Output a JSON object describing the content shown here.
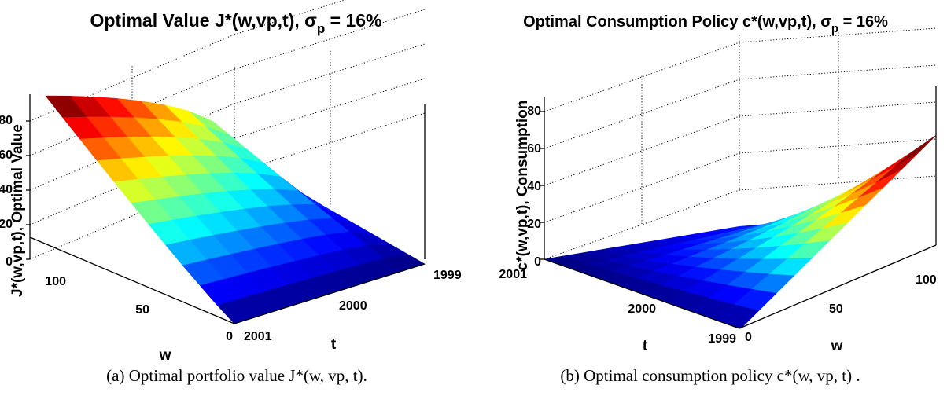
{
  "colors": {
    "axis": "#000000",
    "grid": "#000000",
    "background": "#ffffff",
    "colormap": "jet"
  },
  "chart_data": [
    {
      "type": "surface",
      "title": "Optimal Value J*(w,vp,t), σ",
      "title_sub": "p",
      "title_tail": " = 16%",
      "xlabel": "t",
      "ylabel": "w",
      "zlabel": "J*(w,vp,t), Optimal Value",
      "t_ticks": [
        "1999",
        "2000",
        "2001"
      ],
      "w_ticks": [
        "0",
        "50",
        "100"
      ],
      "z_ticks": [
        "0",
        "20",
        "40",
        "60",
        "80"
      ],
      "t_range": [
        1999,
        2001
      ],
      "w_range": [
        0,
        110
      ],
      "z_range": [
        0,
        85
      ],
      "w_samples": [
        0,
        10,
        20,
        30,
        40,
        50,
        60,
        70,
        80,
        90,
        100,
        110
      ],
      "t_samples": [
        1999.0,
        1999.25,
        1999.5,
        1999.75,
        2000.0,
        2000.25,
        2000.5,
        2000.75,
        2001.0
      ],
      "grid": true,
      "caption": "(a) Optimal portfolio value J*(w, vp, t)."
    },
    {
      "type": "surface",
      "title": "Optimal Consumption Policy c*(w,vp,t), σ",
      "title_sub": "p",
      "title_tail": " = 16%",
      "xlabel": "t",
      "ylabel": "w",
      "zlabel": "c*(w,vp,t), Consumption",
      "t_ticks": [
        "1999",
        "2000",
        "2001"
      ],
      "w_ticks": [
        "0",
        "50",
        "100"
      ],
      "z_ticks": [
        "0",
        "20",
        "40",
        "60",
        "80"
      ],
      "t_range": [
        1999,
        2001
      ],
      "w_range": [
        0,
        110
      ],
      "z_range": [
        0,
        85
      ],
      "w_samples": [
        0,
        10,
        20,
        30,
        40,
        50,
        60,
        70,
        80,
        90,
        100,
        110
      ],
      "t_samples": [
        1999.0,
        1999.25,
        1999.5,
        1999.75,
        2000.0,
        2000.25,
        2000.5,
        2000.75,
        2001.0
      ],
      "grid": true,
      "caption": "(b) Optimal consumption policy c*(w, vp, t) ."
    }
  ]
}
